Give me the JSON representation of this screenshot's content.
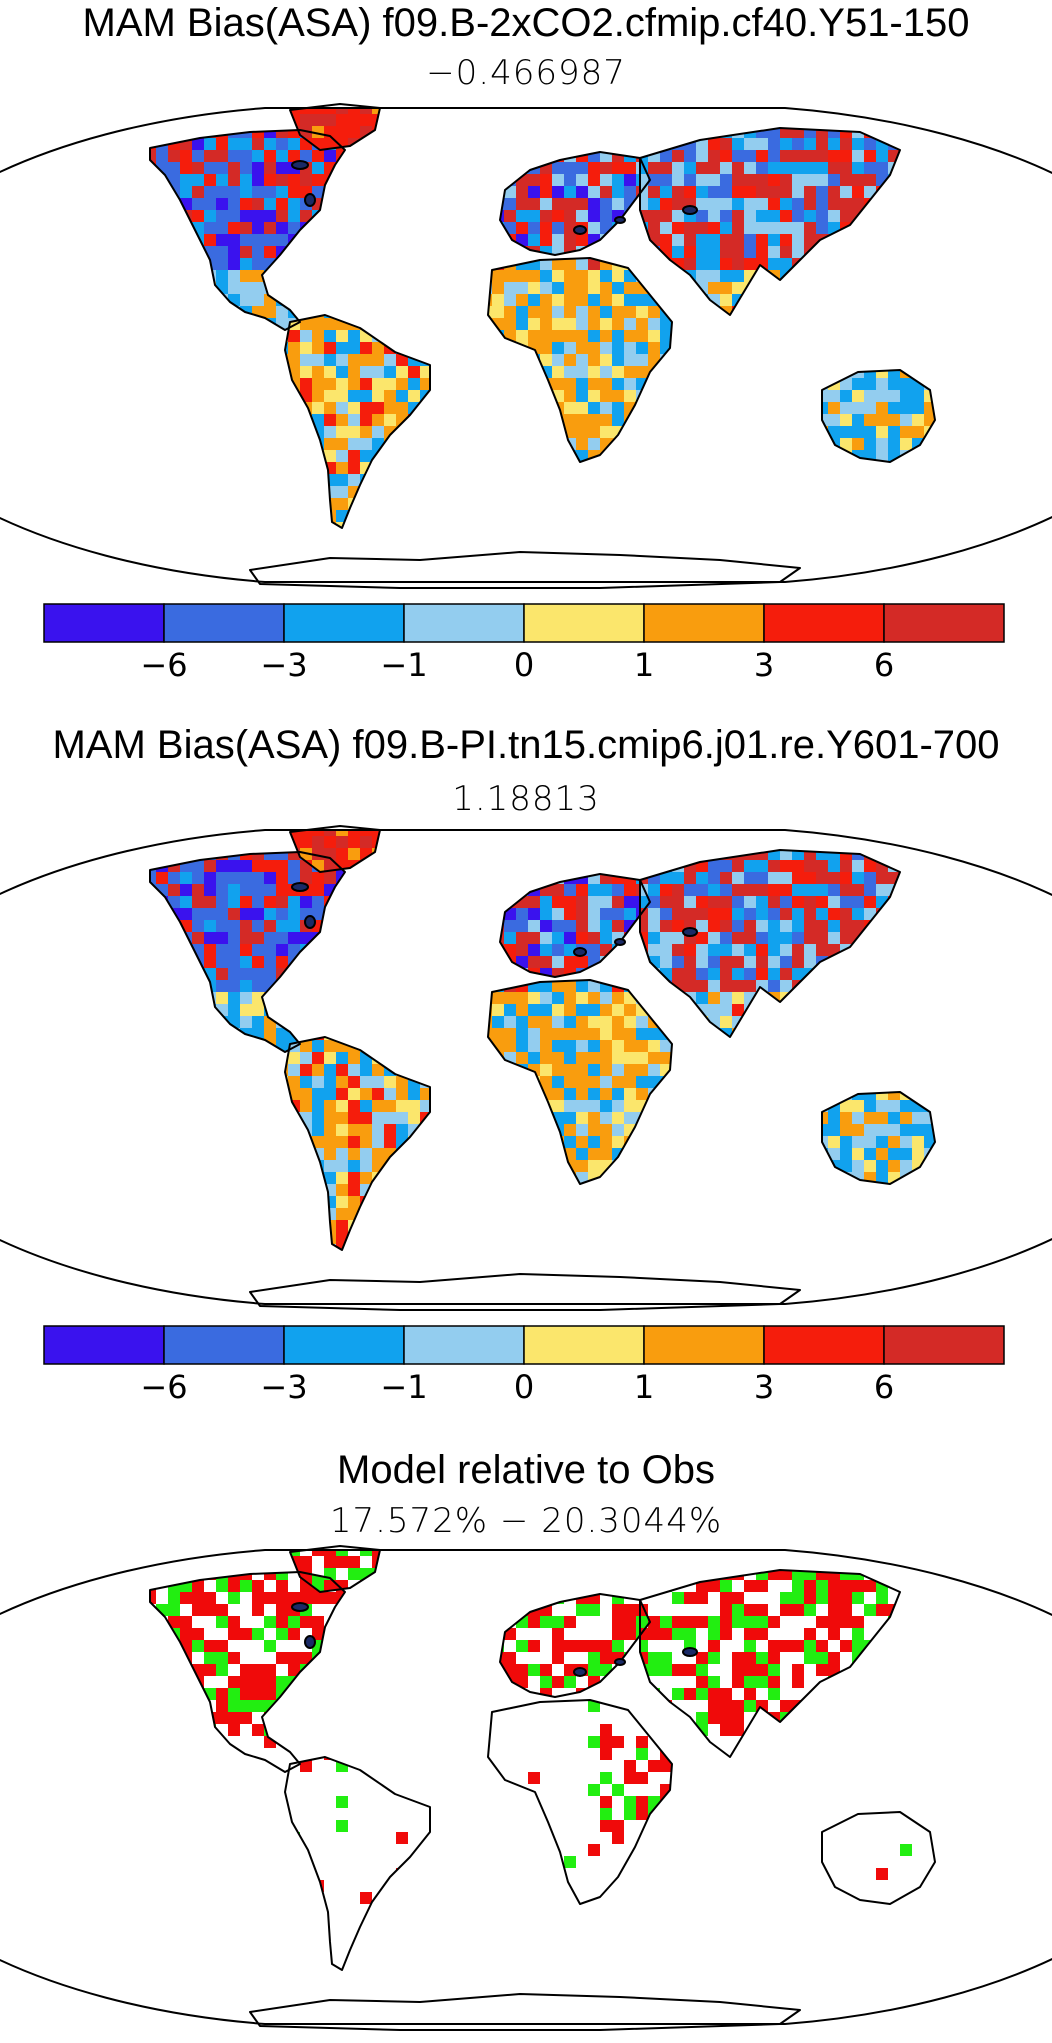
{
  "panels": [
    {
      "title": "MAM Bias(ASA) f09.B-2xCO2.cfmip.cf40.Y51-150",
      "mean_value": "−0.466987"
    },
    {
      "title": "MAM Bias(ASA) f09.B-PI.tn15.cmip6.j01.re.Y601-700",
      "mean_value": "1.18813"
    },
    {
      "title": "Model relative to Obs",
      "mean_value": "17.572% − 20.3044%"
    }
  ],
  "colorbar": {
    "colors": [
      "#3a12ee",
      "#3a6be0",
      "#11a2ee",
      "#93cdef",
      "#fbe66c",
      "#f99d0e",
      "#f51d0c",
      "#d42a26"
    ],
    "labels": [
      "−6",
      "−3",
      "−1",
      "0",
      "1",
      "3",
      "6"
    ]
  },
  "map_colors": {
    "bias_fill": [
      "#3a12ee",
      "#3a6be0",
      "#11a2ee",
      "#93cdef",
      "#fbe66c",
      "#f99d0e",
      "#f51d0c",
      "#d42a26"
    ],
    "relative_fill": [
      "#f00a0a",
      "#22ee11"
    ],
    "coast": "#000000"
  }
}
